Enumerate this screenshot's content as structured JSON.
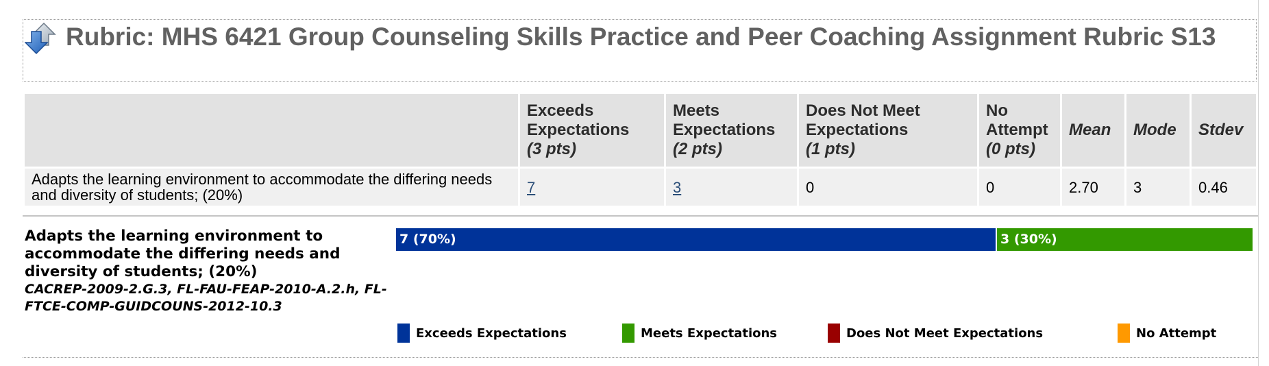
{
  "title": {
    "icon": "rubric-arrows-icon",
    "text": "Rubric: MHS 6421 Group Counseling Skills Practice and Peer Coaching Assignment Rubric S13"
  },
  "table": {
    "headers": [
      {
        "line1": "Exceeds",
        "line2": "Expectations",
        "pts": "(3 pts)"
      },
      {
        "line1": "Meets",
        "line2": "Expectations",
        "pts": "(2 pts)"
      },
      {
        "line1": "Does Not Meet",
        "line2": "Expectations",
        "pts": "(1 pts)"
      },
      {
        "line1": "No",
        "line2": "Attempt",
        "pts": "(0 pts)"
      }
    ],
    "stat_headers": [
      "Mean",
      "Mode",
      "Stdev"
    ],
    "row": {
      "criterion": "Adapts the learning environment to accommodate the differing needs and diversity of students; (20%)",
      "counts": [
        "7",
        "3",
        "0",
        "0"
      ],
      "mean": "2.70",
      "mode": "3",
      "stdev": "0.46"
    }
  },
  "criterion_detail": {
    "title": "Adapts the learning environment to accommodate the differing needs and diversity of students; (20%)",
    "standards": "CACREP-2009-2.G.3, FL-FAU-FEAP-2010-A.2.h, FL-FTCE-COMP-GUIDCOUNS-2012-10.3"
  },
  "distribution": {
    "segments": [
      {
        "label": "7 (70%)",
        "fraction": 0.7,
        "color": "#003399"
      },
      {
        "label": "3 (30%)",
        "fraction": 0.3,
        "color": "#339900"
      }
    ]
  },
  "legend": [
    {
      "label": "Exceeds Expectations",
      "color": "#003399"
    },
    {
      "label": "Meets Expectations",
      "color": "#339900"
    },
    {
      "label": "Does Not Meet Expectations",
      "color": "#990000"
    },
    {
      "label": "No Attempt",
      "color": "#ff9900"
    }
  ]
}
